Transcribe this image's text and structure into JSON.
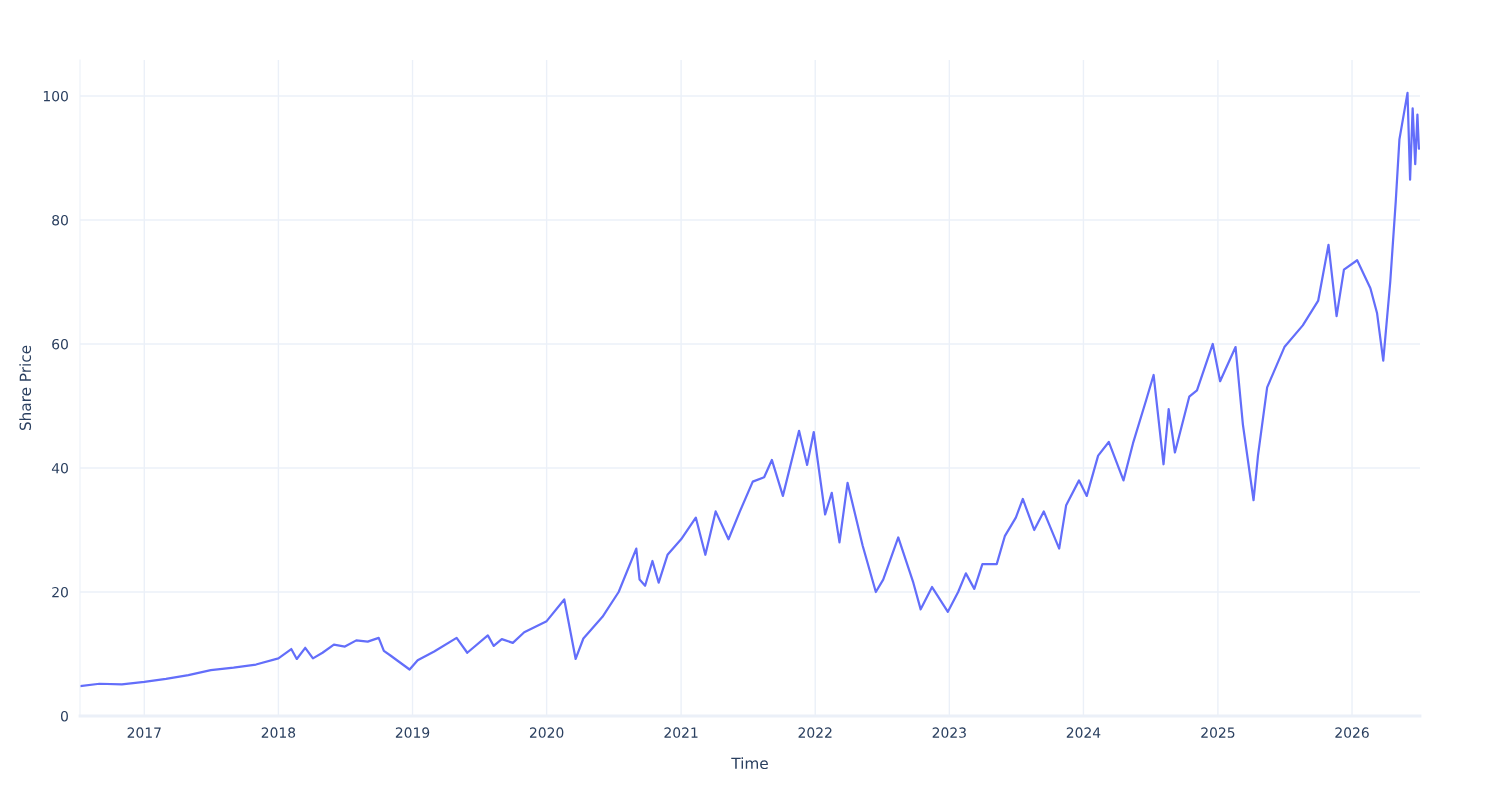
{
  "chart_data": {
    "type": "line",
    "xlabel": "Time",
    "ylabel": "Share Price",
    "grid": true,
    "xlim": [
      "2016-07-10",
      "2026-07-05"
    ],
    "ylim": [
      0,
      105.8
    ],
    "xticks": [
      {
        "value": "2017-01-01",
        "label": "2017"
      },
      {
        "value": "2018-01-01",
        "label": "2018"
      },
      {
        "value": "2019-01-01",
        "label": "2019"
      },
      {
        "value": "2020-01-01",
        "label": "2020"
      },
      {
        "value": "2021-01-01",
        "label": "2021"
      },
      {
        "value": "2022-01-01",
        "label": "2022"
      },
      {
        "value": "2023-01-01",
        "label": "2023"
      },
      {
        "value": "2024-01-01",
        "label": "2024"
      },
      {
        "value": "2025-01-01",
        "label": "2025"
      },
      {
        "value": "2026-01-01",
        "label": "2026"
      }
    ],
    "yticks": [
      0,
      20,
      40,
      60,
      80,
      100
    ],
    "series": [
      {
        "color": "#636efa",
        "x": [
          "2016-07-10",
          "2016-09-01",
          "2016-11-01",
          "2017-01-01",
          "2017-03-01",
          "2017-05-01",
          "2017-07-01",
          "2017-09-01",
          "2017-11-01",
          "2018-01-01",
          "2018-02-05",
          "2018-02-20",
          "2018-03-15",
          "2018-04-05",
          "2018-05-01",
          "2018-06-01",
          "2018-07-01",
          "2018-08-01",
          "2018-09-01",
          "2018-10-01",
          "2018-10-15",
          "2018-11-01",
          "2018-12-24",
          "2019-01-15",
          "2019-03-01",
          "2019-05-01",
          "2019-05-30",
          "2019-07-25",
          "2019-08-10",
          "2019-09-01",
          "2019-10-01",
          "2019-11-01",
          "2020-01-01",
          "2020-02-18",
          "2020-03-20",
          "2020-04-10",
          "2020-06-01",
          "2020-07-15",
          "2020-09-01",
          "2020-09-10",
          "2020-09-25",
          "2020-10-15",
          "2020-11-01",
          "2020-11-25",
          "2021-01-01",
          "2021-02-10",
          "2021-03-08",
          "2021-04-05",
          "2021-05-10",
          "2021-06-10",
          "2021-07-15",
          "2021-08-15",
          "2021-09-05",
          "2021-10-05",
          "2021-11-18",
          "2021-12-10",
          "2021-12-28",
          "2022-01-28",
          "2022-02-15",
          "2022-03-08",
          "2022-03-30",
          "2022-05-10",
          "2022-06-15",
          "2022-07-05",
          "2022-08-15",
          "2022-09-25",
          "2022-10-15",
          "2022-11-15",
          "2022-12-28",
          "2023-01-25",
          "2023-02-15",
          "2023-03-10",
          "2023-04-01",
          "2023-05-10",
          "2023-06-01",
          "2023-07-01",
          "2023-07-20",
          "2023-08-20",
          "2023-09-15",
          "2023-10-27",
          "2023-11-15",
          "2023-12-20",
          "2024-01-10",
          "2024-02-10",
          "2024-03-10",
          "2024-04-19",
          "2024-05-15",
          "2024-06-20",
          "2024-07-10",
          "2024-08-06",
          "2024-08-20",
          "2024-09-06",
          "2024-10-15",
          "2024-11-05",
          "2024-12-18",
          "2025-01-07",
          "2025-02-18",
          "2025-03-10",
          "2025-04-08",
          "2025-04-20",
          "2025-05-15",
          "2025-07-01",
          "2025-08-20",
          "2025-10-01",
          "2025-10-29",
          "2025-11-20",
          "2025-12-10",
          "2026-01-15",
          "2026-02-20",
          "2026-03-10",
          "2026-03-27",
          "2026-04-15",
          "2026-04-30",
          "2026-05-10",
          "2026-06-01",
          "2026-06-08",
          "2026-06-15",
          "2026-06-22",
          "2026-06-28",
          "2026-07-02"
        ],
        "values": [
          4.8,
          5.2,
          5.1,
          5.5,
          6.0,
          6.6,
          7.4,
          7.8,
          8.3,
          9.3,
          10.8,
          9.2,
          11.0,
          9.3,
          10.2,
          11.5,
          11.2,
          12.2,
          12.0,
          12.6,
          10.5,
          9.8,
          7.5,
          9.0,
          10.4,
          12.6,
          10.2,
          13.0,
          11.3,
          12.4,
          11.8,
          13.5,
          15.3,
          18.8,
          9.2,
          12.5,
          16.0,
          20.0,
          27.0,
          22.0,
          21.0,
          25.0,
          21.5,
          26.0,
          28.5,
          32.0,
          26.0,
          33.0,
          28.5,
          33.0,
          37.8,
          38.5,
          41.3,
          35.5,
          46.0,
          40.5,
          45.8,
          32.5,
          36.0,
          28.0,
          37.6,
          27.5,
          20.0,
          22.0,
          28.8,
          21.5,
          17.2,
          20.8,
          16.8,
          20.0,
          23.0,
          20.5,
          24.5,
          24.5,
          29.0,
          32.0,
          35.0,
          30.0,
          33.0,
          27.0,
          34.0,
          38.0,
          35.5,
          42.0,
          44.2,
          38.0,
          44.0,
          51.0,
          55.0,
          40.6,
          49.5,
          42.5,
          51.5,
          52.5,
          60.0,
          54.0,
          59.5,
          47.0,
          34.8,
          42.0,
          53.0,
          59.5,
          63.0,
          67.0,
          76.0,
          64.5,
          72.0,
          73.5,
          69.0,
          65.0,
          57.3,
          70.0,
          83.0,
          93.0,
          100.5,
          86.5,
          98.0,
          89.0,
          97.0,
          91.5
        ]
      }
    ]
  }
}
